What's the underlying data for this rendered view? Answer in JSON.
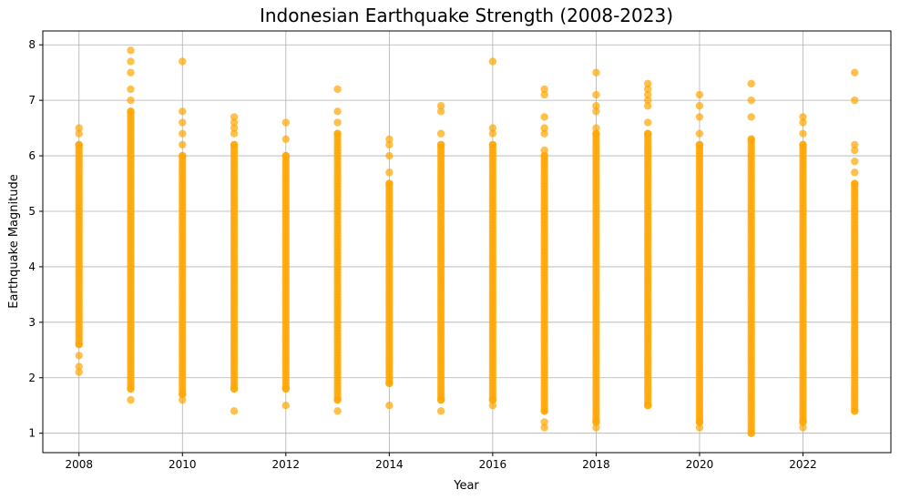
{
  "chart_data": {
    "type": "scatter",
    "title": "Indonesian Earthquake Strength (2008-2023)",
    "xlabel": "Year",
    "ylabel": "Earthquake Magnitude",
    "xlim": [
      2007.3,
      2023.7
    ],
    "ylim": [
      0.65,
      8.25
    ],
    "xticks": [
      2008,
      2010,
      2012,
      2014,
      2016,
      2018,
      2020,
      2022
    ],
    "xtick_labels": [
      "2008",
      "2010",
      "2012",
      "2014",
      "2016",
      "2018",
      "2020",
      "2022"
    ],
    "yticks": [
      1,
      2,
      3,
      4,
      5,
      6,
      7,
      8
    ],
    "ytick_labels": [
      "1",
      "2",
      "3",
      "4",
      "5",
      "6",
      "7",
      "8"
    ],
    "grid": true,
    "marker_color": "#FFA500",
    "series": [
      {
        "values": [
          {
            "x": 2008,
            "range": [
              2.1,
              6.5
            ],
            "outliers": [
              2.1,
              2.2,
              2.4,
              2.6,
              6.2,
              6.4,
              6.5
            ]
          },
          {
            "x": 2009,
            "range": [
              1.6,
              7.9
            ],
            "outliers": [
              1.6,
              1.8,
              6.8,
              7.0,
              7.2,
              7.5,
              7.7,
              7.9
            ]
          },
          {
            "x": 2010,
            "range": [
              1.6,
              7.7
            ],
            "outliers": [
              1.6,
              1.7,
              6.0,
              6.2,
              6.4,
              6.6,
              6.8,
              7.7
            ]
          },
          {
            "x": 2011,
            "range": [
              1.4,
              6.7
            ],
            "outliers": [
              1.4,
              1.8,
              6.2,
              6.4,
              6.5,
              6.6,
              6.7
            ]
          },
          {
            "x": 2012,
            "range": [
              1.5,
              6.6
            ],
            "outliers": [
              1.5,
              1.8,
              6.0,
              6.3,
              6.6
            ]
          },
          {
            "x": 2013,
            "range": [
              1.4,
              7.2
            ],
            "outliers": [
              1.4,
              1.6,
              6.4,
              6.6,
              6.8,
              7.2
            ]
          },
          {
            "x": 2014,
            "range": [
              1.5,
              6.3
            ],
            "outliers": [
              1.5,
              1.9,
              5.5,
              5.7,
              6.0,
              6.2,
              6.3
            ]
          },
          {
            "x": 2015,
            "range": [
              1.4,
              6.9
            ],
            "outliers": [
              1.4,
              1.6,
              6.2,
              6.4,
              6.8,
              6.9
            ]
          },
          {
            "x": 2016,
            "range": [
              1.5,
              7.7
            ],
            "outliers": [
              1.5,
              1.6,
              6.2,
              6.4,
              6.5,
              7.7
            ]
          },
          {
            "x": 2017,
            "range": [
              1.1,
              7.2
            ],
            "outliers": [
              1.1,
              1.2,
              1.4,
              6.0,
              6.1,
              6.4,
              6.5,
              6.7,
              7.1,
              7.2
            ]
          },
          {
            "x": 2018,
            "range": [
              1.1,
              7.5
            ],
            "outliers": [
              1.1,
              1.2,
              6.4,
              6.5,
              6.8,
              6.9,
              7.1,
              7.5
            ]
          },
          {
            "x": 2019,
            "range": [
              1.5,
              7.3
            ],
            "outliers": [
              1.5,
              6.4,
              6.6,
              6.9,
              7.0,
              7.1,
              7.2,
              7.3
            ]
          },
          {
            "x": 2020,
            "range": [
              1.1,
              7.1
            ],
            "outliers": [
              1.1,
              1.2,
              6.2,
              6.4,
              6.7,
              6.9,
              7.1
            ]
          },
          {
            "x": 2021,
            "range": [
              1.0,
              7.3
            ],
            "outliers": [
              1.0,
              6.3,
              6.7,
              7.0,
              7.3
            ]
          },
          {
            "x": 2022,
            "range": [
              1.1,
              6.7
            ],
            "outliers": [
              1.1,
              1.2,
              6.2,
              6.4,
              6.6,
              6.7
            ]
          },
          {
            "x": 2023,
            "range": [
              1.4,
              7.5
            ],
            "outliers": [
              1.4,
              5.5,
              5.7,
              5.9,
              6.1,
              6.2,
              7.0,
              7.5
            ]
          }
        ]
      }
    ]
  }
}
